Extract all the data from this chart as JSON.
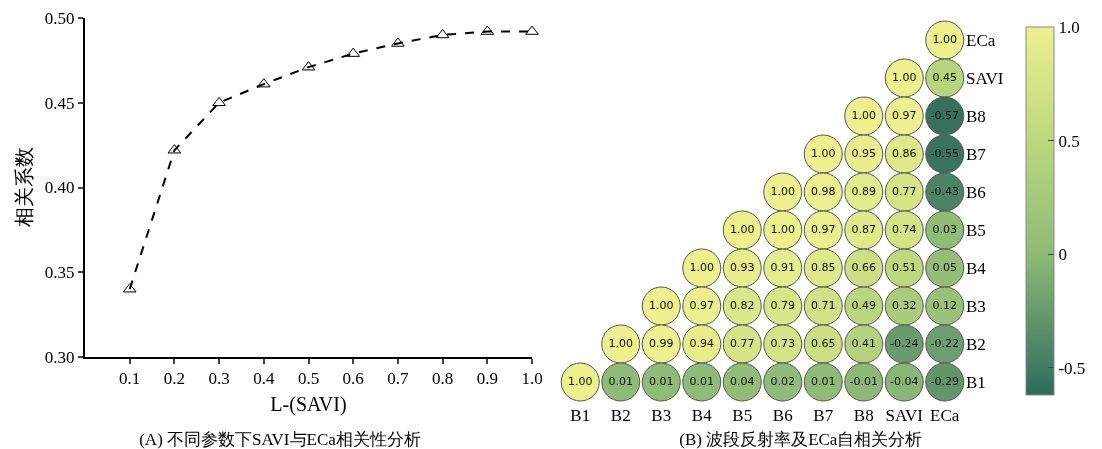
{
  "chart_data": [
    {
      "type": "line",
      "title": "(A) 不同参数下SAVI与ECa相关性分析",
      "xlabel": "L-(SAVI)",
      "ylabel": "相关系数",
      "x": [
        0.1,
        0.2,
        0.3,
        0.4,
        0.5,
        0.6,
        0.7,
        0.8,
        0.9,
        1.0
      ],
      "series": [
        {
          "color": "#000000",
          "values": [
            0.34,
            0.422,
            0.45,
            0.461,
            0.471,
            0.479,
            0.485,
            0.49,
            0.492,
            0.492
          ]
        }
      ],
      "xlim": [
        0,
        1
      ],
      "xticks": [
        0.1,
        0.2,
        0.3,
        0.4,
        0.5,
        0.6,
        0.7,
        0.8,
        0.9,
        {
          "value": 1,
          "label": "1.0"
        }
      ],
      "ylim": [
        0.3,
        0.5
      ],
      "yticks": [
        {
          "value": 0.3,
          "label": "0.30"
        },
        0.35,
        {
          "value": 0.4,
          "label": "0.40"
        },
        0.45,
        {
          "value": 0.5,
          "label": "0.50"
        }
      ],
      "marker": "triangle",
      "line_style": "dashed",
      "grid": false,
      "legend": false
    },
    {
      "type": "heatmap",
      "title": "(B) 波段反射率及ECa自相关分析",
      "categories": [
        "B1",
        "B2",
        "B3",
        "B4",
        "B5",
        "B6",
        "B7",
        "B8",
        "SAVI",
        "ECa"
      ],
      "y_categories": [
        "ECa",
        "SAVI",
        "B8",
        "B7",
        "B6",
        "B5",
        "B4",
        "B3",
        "B2",
        "B1"
      ],
      "cells": [
        [
          null,
          null,
          null,
          null,
          null,
          null,
          null,
          null,
          null,
          1.0
        ],
        [
          null,
          null,
          null,
          null,
          null,
          null,
          null,
          null,
          1.0,
          0.45
        ],
        [
          null,
          null,
          null,
          null,
          null,
          null,
          null,
          1.0,
          0.97,
          -0.57
        ],
        [
          null,
          null,
          null,
          null,
          null,
          null,
          1.0,
          0.95,
          0.86,
          -0.55
        ],
        [
          null,
          null,
          null,
          null,
          null,
          1.0,
          0.98,
          0.89,
          0.77,
          -0.43
        ],
        [
          null,
          null,
          null,
          null,
          1.0,
          1.0,
          0.97,
          0.87,
          0.74,
          0.03
        ],
        [
          null,
          null,
          null,
          1.0,
          0.93,
          0.91,
          0.85,
          0.66,
          0.51,
          0.05
        ],
        [
          null,
          null,
          1.0,
          0.97,
          0.82,
          0.79,
          0.71,
          0.49,
          0.32,
          0.12
        ],
        [
          null,
          1.0,
          0.99,
          0.94,
          0.77,
          0.73,
          0.65,
          0.41,
          -0.24,
          -0.22
        ],
        [
          1.0,
          0.01,
          0.01,
          0.01,
          0.04,
          0.02,
          0.01,
          -0.01,
          -0.04,
          -0.29
        ]
      ],
      "cell_labels": [
        [
          null,
          null,
          null,
          null,
          null,
          null,
          null,
          null,
          null,
          "1.00"
        ],
        [
          null,
          null,
          null,
          null,
          null,
          null,
          null,
          null,
          "1.00",
          "0.45"
        ],
        [
          null,
          null,
          null,
          null,
          null,
          null,
          null,
          "1.00",
          "0.97",
          "-0.57"
        ],
        [
          null,
          null,
          null,
          null,
          null,
          null,
          "1.00",
          "0.95",
          "0.86",
          "-0.55"
        ],
        [
          null,
          null,
          null,
          null,
          null,
          "1.00",
          "0.98",
          "0.89",
          "0.77",
          "-0.43"
        ],
        [
          null,
          null,
          null,
          null,
          "1.00",
          "1.00",
          "0.97",
          "0.87",
          "0.74",
          "0.03"
        ],
        [
          null,
          null,
          null,
          "1.00",
          "0.93",
          "0.91",
          "0.85",
          "0.66",
          "0.51",
          "0.05"
        ],
        [
          null,
          null,
          "1.00",
          "0.97",
          "0.82",
          "0.79",
          "0.71",
          "0.49",
          "0.32",
          "0.12"
        ],
        [
          null,
          "1.00",
          "0.99",
          "0.94",
          "0.77",
          "0.73",
          "0.65",
          "0.41",
          "-0.24",
          "-0.22"
        ],
        [
          "1.00",
          "0.01",
          "0.01",
          "0.01",
          "0.04",
          "0.02",
          "0.01",
          "-0.01",
          "-0.04",
          "-0.29"
        ]
      ],
      "clim": [
        -0.62,
        1.0
      ],
      "cticks": [
        -0.5,
        0,
        0.5,
        {
          "value": 1,
          "label": "1.0"
        }
      ],
      "data_labels": true
    }
  ]
}
